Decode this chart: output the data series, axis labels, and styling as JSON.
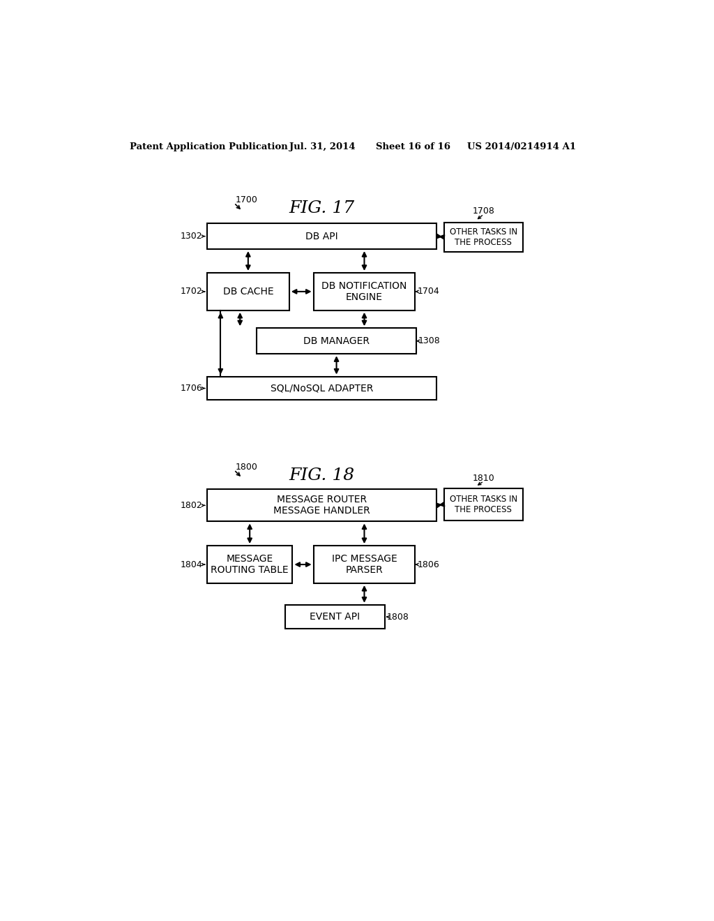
{
  "bg_color": "#ffffff",
  "header_left": "Patent Application Publication",
  "header_date": "Jul. 31, 2014",
  "header_sheet": "Sheet 16 of 16",
  "header_patent": "US 2014/0214914 A1",
  "fig17_title": "FIG. 17",
  "fig17_ref": "1700",
  "fig18_title": "FIG. 18",
  "fig18_ref": "1800"
}
